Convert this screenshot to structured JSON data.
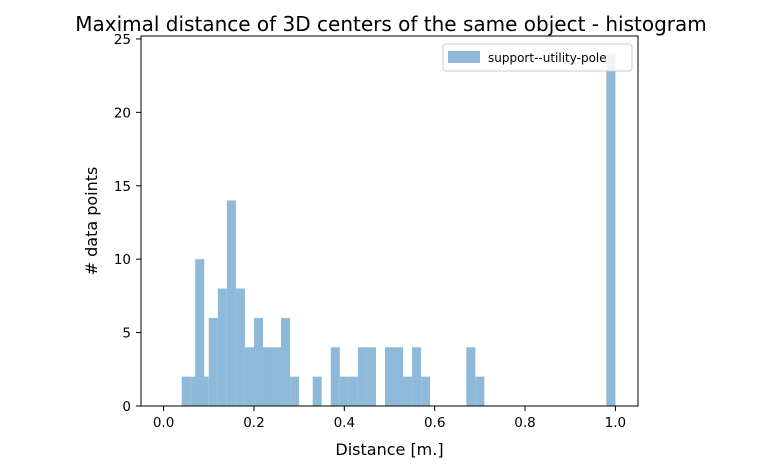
{
  "chart_data": {
    "type": "bar",
    "title": "Maximal distance of 3D centers of the same object - histogram",
    "xlabel": "Distance [m.]",
    "ylabel": "# data points",
    "xlim": [
      -0.05,
      1.05
    ],
    "ylim": [
      0,
      25.2
    ],
    "xticks": [
      0.0,
      0.2,
      0.4,
      0.6,
      0.8,
      1.0
    ],
    "xtick_labels": [
      "0.0",
      "0.2",
      "0.4",
      "0.6",
      "0.8",
      "1.0"
    ],
    "yticks": [
      0,
      5,
      10,
      15,
      20,
      25
    ],
    "ytick_labels": [
      "0",
      "5",
      "10",
      "15",
      "20",
      "25"
    ],
    "grid": false,
    "legend_position": "top-right",
    "bin_width": 0.02,
    "series": [
      {
        "name": "support--utility-pole",
        "color": "#8fb9d8",
        "bins": [
          {
            "x0": 0.04,
            "value": 2
          },
          {
            "x0": 0.06,
            "value": 2
          },
          {
            "x0": 0.07,
            "value": 10
          },
          {
            "x0": 0.08,
            "value": 2
          },
          {
            "x0": 0.1,
            "value": 6
          },
          {
            "x0": 0.12,
            "value": 8
          },
          {
            "x0": 0.14,
            "value": 14
          },
          {
            "x0": 0.16,
            "value": 8
          },
          {
            "x0": 0.18,
            "value": 4
          },
          {
            "x0": 0.2,
            "value": 6
          },
          {
            "x0": 0.22,
            "value": 4
          },
          {
            "x0": 0.24,
            "value": 4
          },
          {
            "x0": 0.26,
            "value": 6
          },
          {
            "x0": 0.28,
            "value": 2
          },
          {
            "x0": 0.33,
            "value": 2
          },
          {
            "x0": 0.37,
            "value": 4
          },
          {
            "x0": 0.39,
            "value": 2
          },
          {
            "x0": 0.41,
            "value": 2
          },
          {
            "x0": 0.43,
            "value": 4
          },
          {
            "x0": 0.45,
            "value": 4
          },
          {
            "x0": 0.49,
            "value": 4
          },
          {
            "x0": 0.51,
            "value": 4
          },
          {
            "x0": 0.53,
            "value": 2
          },
          {
            "x0": 0.55,
            "value": 4
          },
          {
            "x0": 0.57,
            "value": 2
          },
          {
            "x0": 0.67,
            "value": 4
          },
          {
            "x0": 0.69,
            "value": 2
          },
          {
            "x0": 0.98,
            "value": 24
          }
        ]
      }
    ]
  }
}
